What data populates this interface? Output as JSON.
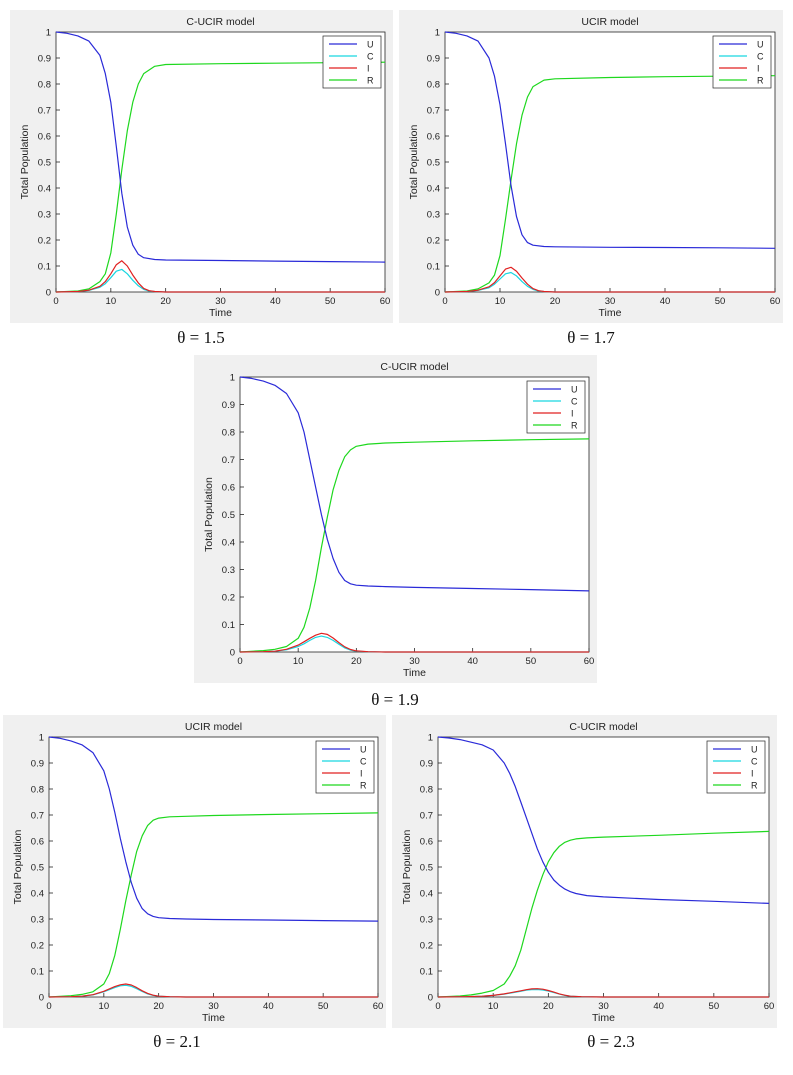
{
  "colors": {
    "U": "#2a2ad8",
    "C": "#19d6e0",
    "I": "#e02020",
    "R": "#1ed81e",
    "frame_bg": "#f0f0f0"
  },
  "chart_data": [
    {
      "type": "line",
      "title": "C-UCIR model",
      "caption": "θ = 1.5",
      "xlabel": "Time",
      "ylabel": "Total Population",
      "xlim": [
        0,
        60
      ],
      "ylim": [
        0,
        1
      ],
      "xticks": [
        "0",
        "10",
        "20",
        "30",
        "40",
        "50",
        "60"
      ],
      "yticks": [
        "0",
        "0.1",
        "0.2",
        "0.3",
        "0.4",
        "0.5",
        "0.6",
        "0.7",
        "0.8",
        "0.9",
        "1"
      ],
      "legend": "top-right",
      "grid": false,
      "series": [
        {
          "name": "U",
          "x": [
            0,
            2,
            4,
            6,
            8,
            9,
            10,
            11,
            12,
            13,
            14,
            15,
            16,
            18,
            20,
            30,
            40,
            50,
            60
          ],
          "y": [
            1,
            0.995,
            0.985,
            0.965,
            0.91,
            0.84,
            0.73,
            0.56,
            0.38,
            0.25,
            0.18,
            0.145,
            0.132,
            0.125,
            0.123,
            0.121,
            0.119,
            0.117,
            0.115
          ]
        },
        {
          "name": "C",
          "x": [
            0,
            4,
            6,
            8,
            9,
            10,
            11,
            12,
            13,
            14,
            15,
            16,
            17,
            18,
            20,
            30,
            60
          ],
          "y": [
            0,
            0.002,
            0.006,
            0.018,
            0.032,
            0.055,
            0.08,
            0.087,
            0.07,
            0.045,
            0.024,
            0.01,
            0.004,
            0.002,
            0,
            0,
            0
          ]
        },
        {
          "name": "I",
          "x": [
            0,
            4,
            6,
            8,
            9,
            10,
            11,
            12,
            13,
            14,
            15,
            16,
            17,
            18,
            20,
            30,
            60
          ],
          "y": [
            0,
            0.002,
            0.007,
            0.022,
            0.04,
            0.07,
            0.105,
            0.12,
            0.1,
            0.065,
            0.035,
            0.014,
            0.005,
            0.002,
            0,
            0,
            0
          ]
        },
        {
          "name": "R",
          "x": [
            0,
            4,
            6,
            8,
            9,
            10,
            11,
            12,
            13,
            14,
            15,
            16,
            18,
            20,
            30,
            40,
            50,
            60
          ],
          "y": [
            0,
            0.004,
            0.012,
            0.04,
            0.07,
            0.15,
            0.3,
            0.47,
            0.62,
            0.73,
            0.8,
            0.84,
            0.868,
            0.875,
            0.878,
            0.88,
            0.882,
            0.884
          ]
        }
      ]
    },
    {
      "type": "line",
      "title": "UCIR model",
      "caption": "θ = 1.7",
      "xlabel": "Time",
      "ylabel": "Total Population",
      "xlim": [
        0,
        60
      ],
      "ylim": [
        0,
        1
      ],
      "xticks": [
        "0",
        "10",
        "20",
        "30",
        "40",
        "50",
        "60"
      ],
      "yticks": [
        "0",
        "0.1",
        "0.2",
        "0.3",
        "0.4",
        "0.5",
        "0.6",
        "0.7",
        "0.8",
        "0.9",
        "1"
      ],
      "legend": "top-right",
      "grid": false,
      "series": [
        {
          "name": "U",
          "x": [
            0,
            2,
            4,
            6,
            8,
            9,
            10,
            11,
            12,
            13,
            14,
            15,
            16,
            18,
            20,
            30,
            40,
            50,
            60
          ],
          "y": [
            1,
            0.995,
            0.985,
            0.965,
            0.9,
            0.83,
            0.72,
            0.57,
            0.41,
            0.29,
            0.22,
            0.19,
            0.18,
            0.175,
            0.174,
            0.172,
            0.171,
            0.17,
            0.168
          ]
        },
        {
          "name": "C",
          "x": [
            0,
            4,
            6,
            8,
            9,
            10,
            11,
            12,
            13,
            14,
            15,
            16,
            17,
            18,
            20,
            30,
            60
          ],
          "y": [
            0,
            0.002,
            0.006,
            0.016,
            0.03,
            0.05,
            0.07,
            0.075,
            0.062,
            0.04,
            0.022,
            0.01,
            0.004,
            0.002,
            0,
            0,
            0
          ]
        },
        {
          "name": "I",
          "x": [
            0,
            4,
            6,
            8,
            9,
            10,
            11,
            12,
            13,
            14,
            15,
            16,
            17,
            18,
            20,
            30,
            60
          ],
          "y": [
            0,
            0.002,
            0.007,
            0.02,
            0.036,
            0.062,
            0.088,
            0.095,
            0.08,
            0.054,
            0.03,
            0.013,
            0.005,
            0.002,
            0,
            0,
            0
          ]
        },
        {
          "name": "R",
          "x": [
            0,
            4,
            6,
            8,
            9,
            10,
            11,
            12,
            13,
            14,
            15,
            16,
            18,
            20,
            30,
            40,
            50,
            60
          ],
          "y": [
            0,
            0.004,
            0.012,
            0.035,
            0.065,
            0.14,
            0.28,
            0.43,
            0.57,
            0.68,
            0.75,
            0.79,
            0.815,
            0.82,
            0.825,
            0.828,
            0.83,
            0.832
          ]
        }
      ]
    },
    {
      "type": "line",
      "title": "C-UCIR model",
      "caption": "θ = 1.9",
      "xlabel": "Time",
      "ylabel": "Total Population",
      "xlim": [
        0,
        60
      ],
      "ylim": [
        0,
        1
      ],
      "xticks": [
        "0",
        "10",
        "20",
        "30",
        "40",
        "50",
        "60"
      ],
      "yticks": [
        "0",
        "0.1",
        "0.2",
        "0.3",
        "0.4",
        "0.5",
        "0.6",
        "0.7",
        "0.8",
        "0.9",
        "1"
      ],
      "legend": "top-right",
      "grid": false,
      "series": [
        {
          "name": "U",
          "x": [
            0,
            2,
            4,
            6,
            8,
            10,
            11,
            12,
            13,
            14,
            15,
            16,
            17,
            18,
            19,
            20,
            22,
            25,
            30,
            40,
            50,
            60
          ],
          "y": [
            1,
            0.995,
            0.985,
            0.97,
            0.94,
            0.87,
            0.8,
            0.7,
            0.6,
            0.5,
            0.41,
            0.34,
            0.29,
            0.26,
            0.248,
            0.243,
            0.24,
            0.238,
            0.235,
            0.231,
            0.227,
            0.222
          ]
        },
        {
          "name": "C",
          "x": [
            0,
            4,
            6,
            8,
            10,
            11,
            12,
            13,
            14,
            15,
            16,
            17,
            18,
            19,
            20,
            22,
            25,
            60
          ],
          "y": [
            0,
            0.001,
            0.003,
            0.008,
            0.02,
            0.03,
            0.042,
            0.053,
            0.058,
            0.053,
            0.042,
            0.028,
            0.015,
            0.007,
            0.003,
            0.001,
            0,
            0
          ]
        },
        {
          "name": "I",
          "x": [
            0,
            4,
            6,
            8,
            10,
            11,
            12,
            13,
            14,
            15,
            16,
            17,
            18,
            19,
            20,
            22,
            25,
            60
          ],
          "y": [
            0,
            0.001,
            0.003,
            0.01,
            0.025,
            0.037,
            0.05,
            0.061,
            0.068,
            0.064,
            0.051,
            0.034,
            0.019,
            0.009,
            0.004,
            0.001,
            0,
            0
          ]
        },
        {
          "name": "R",
          "x": [
            0,
            4,
            6,
            8,
            10,
            11,
            12,
            13,
            14,
            15,
            16,
            17,
            18,
            19,
            20,
            22,
            25,
            30,
            40,
            50,
            60
          ],
          "y": [
            0,
            0.005,
            0.01,
            0.02,
            0.05,
            0.09,
            0.16,
            0.26,
            0.38,
            0.49,
            0.59,
            0.66,
            0.71,
            0.735,
            0.748,
            0.756,
            0.76,
            0.763,
            0.768,
            0.772,
            0.775
          ]
        }
      ]
    },
    {
      "type": "line",
      "title": "UCIR model",
      "caption": "θ = 2.1",
      "xlabel": "Time",
      "ylabel": "Total Population",
      "xlim": [
        0,
        60
      ],
      "ylim": [
        0,
        1
      ],
      "xticks": [
        "0",
        "10",
        "20",
        "30",
        "40",
        "50",
        "60"
      ],
      "yticks": [
        "0",
        "0.1",
        "0.2",
        "0.3",
        "0.4",
        "0.5",
        "0.6",
        "0.7",
        "0.8",
        "0.9",
        "1"
      ],
      "legend": "top-right",
      "grid": false,
      "series": [
        {
          "name": "U",
          "x": [
            0,
            2,
            4,
            6,
            8,
            10,
            11,
            12,
            13,
            14,
            15,
            16,
            17,
            18,
            19,
            20,
            22,
            25,
            30,
            40,
            50,
            60
          ],
          "y": [
            1,
            0.995,
            0.985,
            0.97,
            0.94,
            0.87,
            0.8,
            0.71,
            0.61,
            0.52,
            0.44,
            0.38,
            0.34,
            0.32,
            0.31,
            0.305,
            0.302,
            0.3,
            0.298,
            0.296,
            0.294,
            0.292
          ]
        },
        {
          "name": "C",
          "x": [
            0,
            4,
            6,
            8,
            10,
            11,
            12,
            13,
            14,
            15,
            16,
            17,
            18,
            19,
            20,
            22,
            25,
            60
          ],
          "y": [
            0,
            0.001,
            0.003,
            0.008,
            0.02,
            0.028,
            0.036,
            0.043,
            0.045,
            0.041,
            0.032,
            0.021,
            0.012,
            0.006,
            0.003,
            0.001,
            0,
            0
          ]
        },
        {
          "name": "I",
          "x": [
            0,
            4,
            6,
            8,
            10,
            11,
            12,
            13,
            14,
            15,
            16,
            17,
            18,
            19,
            20,
            22,
            25,
            60
          ],
          "y": [
            0,
            0.001,
            0.003,
            0.009,
            0.022,
            0.031,
            0.04,
            0.047,
            0.05,
            0.046,
            0.036,
            0.024,
            0.014,
            0.007,
            0.003,
            0.001,
            0,
            0
          ]
        },
        {
          "name": "R",
          "x": [
            0,
            4,
            6,
            8,
            10,
            11,
            12,
            13,
            14,
            15,
            16,
            17,
            18,
            19,
            20,
            22,
            25,
            30,
            40,
            50,
            60
          ],
          "y": [
            0,
            0.005,
            0.01,
            0.02,
            0.05,
            0.09,
            0.16,
            0.26,
            0.37,
            0.47,
            0.56,
            0.62,
            0.66,
            0.68,
            0.688,
            0.693,
            0.695,
            0.698,
            0.702,
            0.705,
            0.708
          ]
        }
      ]
    },
    {
      "type": "line",
      "title": "C-UCIR model",
      "caption": "θ = 2.3",
      "xlabel": "Time",
      "ylabel": "Total Population",
      "xlim": [
        0,
        60
      ],
      "ylim": [
        0,
        1
      ],
      "xticks": [
        "0",
        "10",
        "20",
        "30",
        "40",
        "50",
        "60"
      ],
      "yticks": [
        "0",
        "0.1",
        "0.2",
        "0.3",
        "0.4",
        "0.5",
        "0.6",
        "0.7",
        "0.8",
        "0.9",
        "1"
      ],
      "legend": "top-right",
      "grid": false,
      "series": [
        {
          "name": "U",
          "x": [
            0,
            2,
            4,
            6,
            8,
            10,
            12,
            13,
            14,
            15,
            16,
            17,
            18,
            19,
            20,
            21,
            22,
            23,
            24,
            25,
            27,
            30,
            40,
            50,
            60
          ],
          "y": [
            1,
            0.996,
            0.99,
            0.98,
            0.97,
            0.95,
            0.9,
            0.86,
            0.81,
            0.75,
            0.69,
            0.63,
            0.57,
            0.52,
            0.48,
            0.45,
            0.43,
            0.415,
            0.405,
            0.398,
            0.39,
            0.385,
            0.375,
            0.368,
            0.36
          ]
        },
        {
          "name": "C",
          "x": [
            0,
            5,
            8,
            10,
            12,
            14,
            15,
            16,
            17,
            18,
            19,
            20,
            21,
            22,
            23,
            24,
            26,
            30,
            60
          ],
          "y": [
            0,
            0.001,
            0.003,
            0.006,
            0.011,
            0.018,
            0.022,
            0.026,
            0.028,
            0.029,
            0.027,
            0.023,
            0.017,
            0.011,
            0.006,
            0.003,
            0.001,
            0,
            0
          ]
        },
        {
          "name": "I",
          "x": [
            0,
            5,
            8,
            10,
            12,
            14,
            15,
            16,
            17,
            18,
            19,
            20,
            21,
            22,
            23,
            24,
            26,
            30,
            60
          ],
          "y": [
            0,
            0.001,
            0.003,
            0.006,
            0.012,
            0.02,
            0.024,
            0.028,
            0.031,
            0.032,
            0.03,
            0.025,
            0.019,
            0.012,
            0.007,
            0.003,
            0.001,
            0,
            0
          ]
        },
        {
          "name": "R",
          "x": [
            0,
            4,
            6,
            8,
            10,
            12,
            13,
            14,
            15,
            16,
            17,
            18,
            19,
            20,
            21,
            22,
            23,
            24,
            25,
            27,
            30,
            40,
            50,
            60
          ],
          "y": [
            0,
            0.004,
            0.008,
            0.015,
            0.025,
            0.05,
            0.08,
            0.12,
            0.18,
            0.26,
            0.34,
            0.41,
            0.47,
            0.52,
            0.555,
            0.58,
            0.595,
            0.603,
            0.608,
            0.612,
            0.615,
            0.622,
            0.63,
            0.637
          ]
        }
      ]
    }
  ]
}
